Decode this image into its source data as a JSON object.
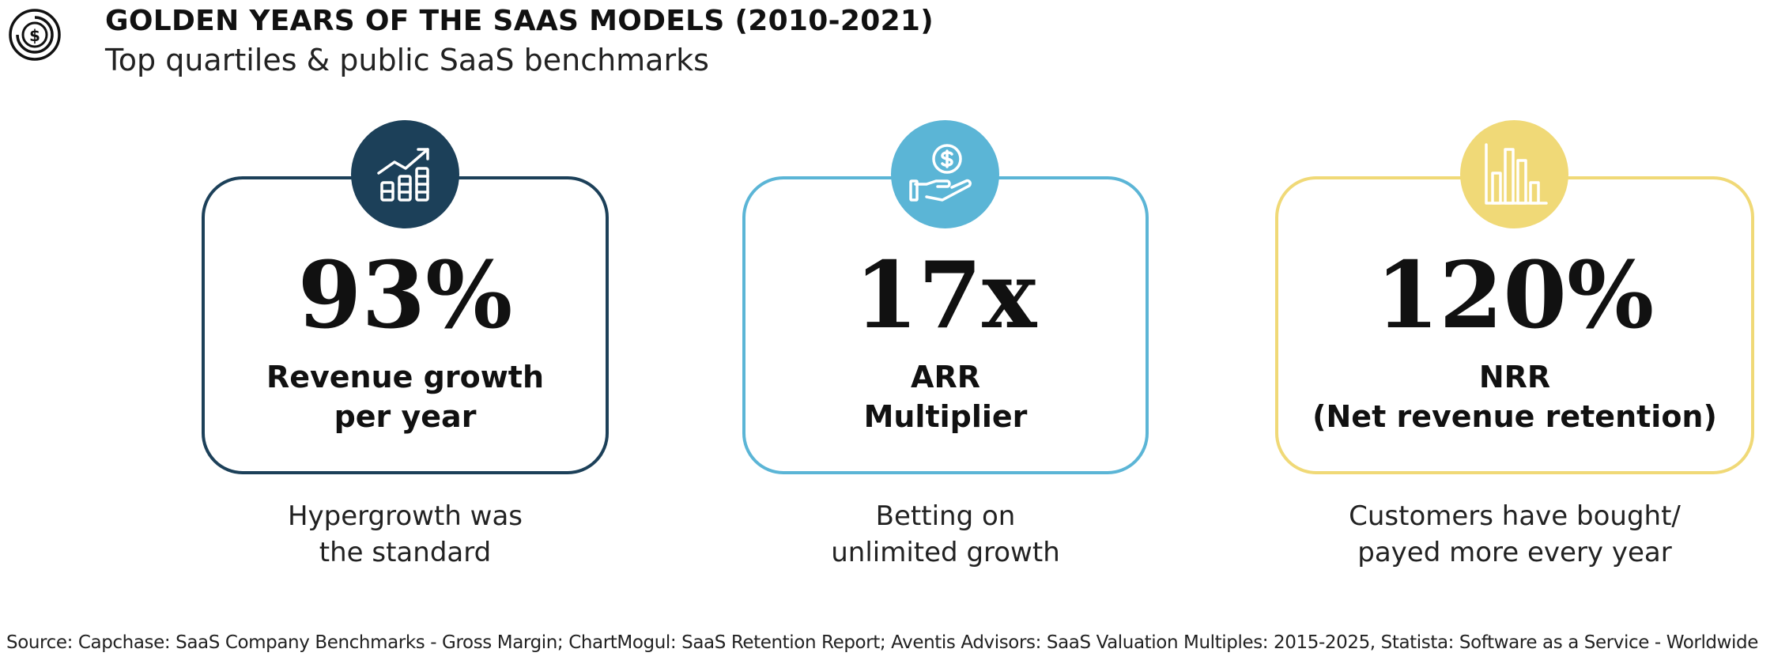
{
  "header": {
    "icon": "dollar-coin-icon",
    "title": "GOLDEN YEARS OF THE SAAS MODELS (2010-2021)",
    "subtitle": "Top quartiles & public SaaS benchmarks"
  },
  "colors": {
    "navy": "#1c4059",
    "sky": "#5bb5d6",
    "yellow": "#f0d977"
  },
  "cards": [
    {
      "icon": "growth-chart-icon",
      "value": "93%",
      "label_lines": [
        "Revenue growth",
        "per year"
      ],
      "caption_lines": [
        "Hypergrowth was",
        "the standard"
      ]
    },
    {
      "icon": "hand-coin-icon",
      "value": "17x",
      "label_lines": [
        "ARR",
        "Multiplier"
      ],
      "caption_lines": [
        "Betting on",
        "unlimited growth"
      ]
    },
    {
      "icon": "bar-chart-icon",
      "value": "120%",
      "label_lines": [
        "NRR",
        "(Net revenue retention)"
      ],
      "caption_lines": [
        "Customers have bought/",
        "payed more every year"
      ]
    }
  ],
  "source": "Source: Capchase: SaaS Company Benchmarks - Gross Margin; ChartMogul: SaaS Retention Report; Aventis Advisors: SaaS Valuation Multiples: 2015-2025, Statista: Software as a Service - Worldwide"
}
